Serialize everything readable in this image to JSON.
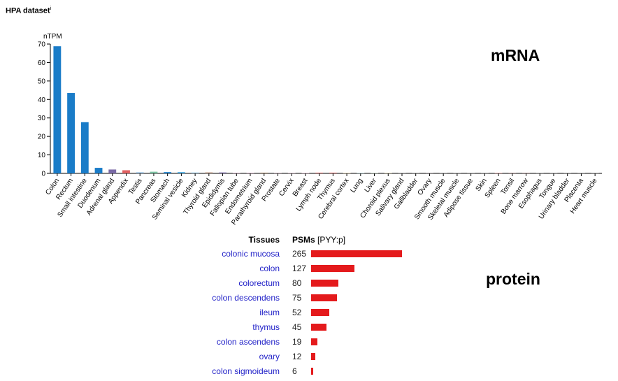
{
  "dataset_title": "HPA dataset",
  "dataset_info_marker": "i",
  "section_labels": {
    "mrna": "mRNA",
    "protein": "protein"
  },
  "colors": {
    "bar_gi": "#1a7cc8",
    "bar_adrenal": "#7a6aa6",
    "bar_appendix": "#e06060",
    "bar_other": "#4aa8dc",
    "bar_lymphoid": "#e07070",
    "protein_bar": "#e41a1c",
    "tissue_link": "#2323c8"
  },
  "chart_data": [
    {
      "type": "bar",
      "title": "",
      "xlabel": "",
      "ylabel": "nTPM",
      "ylim": [
        0,
        70
      ],
      "yticks": [
        0,
        10,
        20,
        30,
        40,
        50,
        60,
        70
      ],
      "grid": false,
      "categories": [
        "Colon",
        "Rectum",
        "Small intestine",
        "Duodenum",
        "Adrenal gland",
        "Appendix",
        "Testis",
        "Pancreas",
        "Stomach",
        "Seminal vesicle",
        "Kidney",
        "Thyroid gland",
        "Epididymis",
        "Fallopian tube",
        "Endometrium",
        "Parathyroid gland",
        "Prostate",
        "Cervix",
        "Breast",
        "Lymph node",
        "Thymus",
        "Cerebral cortex",
        "Lung",
        "Liver",
        "Choroid plexus",
        "Salivary gland",
        "Gallbladder",
        "Ovary",
        "Smooth muscle",
        "Skeletal muscle",
        "Adipose tissue",
        "Skin",
        "Spleen",
        "Tonsil",
        "Bone marrow",
        "Esophagus",
        "Tongue",
        "Urinary bladder",
        "Placenta",
        "Heart muscle"
      ],
      "values": [
        68.8,
        43.5,
        27.7,
        3.0,
        2.1,
        1.7,
        0.6,
        0.9,
        0.7,
        0.7,
        0.5,
        0.6,
        0.5,
        0.3,
        0.3,
        0.4,
        0.3,
        0.3,
        0.2,
        0.4,
        0.4,
        0.2,
        0.2,
        0.2,
        0.2,
        0.1,
        0.1,
        0.1,
        0.1,
        0.1,
        0.1,
        0.1,
        0.2,
        0.1,
        0.1,
        0.1,
        0.1,
        0.1,
        0.1,
        0.1
      ],
      "bar_colors": [
        "#1a7cc8",
        "#1a7cc8",
        "#1a7cc8",
        "#1a7cc8",
        "#7a6aa6",
        "#e06060",
        "#8ab4d8",
        "#7ac0a0",
        "#1a7cc8",
        "#4aa8dc",
        "#9ec8e0",
        "#c0a090",
        "#7a6aa6",
        "#d0a0c0",
        "#d0a0c0",
        "#b09070",
        "#c0a0b0",
        "#d0b0c0",
        "#e0a0c0",
        "#e07070",
        "#e07070",
        "#e0c080",
        "#90c8d0",
        "#a0c0a0",
        "#d0c080",
        "#c0c0c0",
        "#c0c0c0",
        "#d0b0c0",
        "#c0c0c0",
        "#c0c0c0",
        "#c0c0c0",
        "#c0c0c0",
        "#e07070",
        "#e07070",
        "#e07070",
        "#c0c0c0",
        "#c0c0c0",
        "#c0c0c0",
        "#c0c0c0",
        "#c0c0c0"
      ]
    },
    {
      "type": "bar",
      "orientation": "horizontal",
      "title": "",
      "column_headers": {
        "tissues": "Tissues",
        "psms": "PSMs",
        "psms_suffix": "[PYY:p]"
      },
      "categories": [
        "colonic mucosa",
        "colon",
        "colorectum",
        "colon descendens",
        "ileum",
        "thymus",
        "colon ascendens",
        "ovary",
        "colon sigmoideum"
      ],
      "values": [
        265,
        127,
        80,
        75,
        52,
        45,
        19,
        12,
        6
      ],
      "xlim": [
        0,
        265
      ]
    }
  ]
}
